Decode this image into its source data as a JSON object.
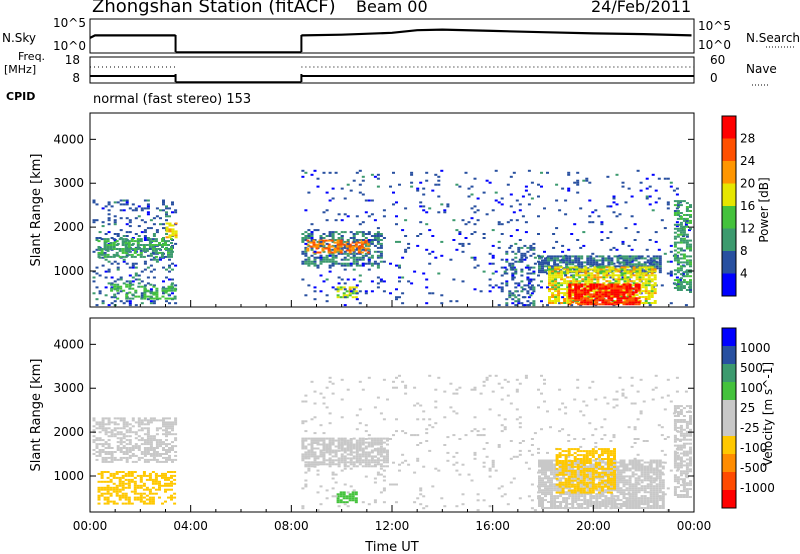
{
  "header": {
    "station_title": "Zhongshan Station (fitACF)",
    "beam": "Beam 00",
    "date": "24/Feb/2011",
    "mode": "normal (fast stereo) 153",
    "cpid_label": "CPID"
  },
  "strips": {
    "nsky_label": "N.Sky",
    "nsky_ticks": [
      "10^5",
      "10^0"
    ],
    "nsearch_label": "N.Search",
    "nsearch_ticks": [
      "10^5",
      "10^0"
    ],
    "freq_label": "Freq.",
    "freq_unit": "[MHz]",
    "freq_ticks": [
      "18",
      "8"
    ],
    "nave_label": "Nave",
    "nave_ticks": [
      "60",
      "0"
    ]
  },
  "colors": {
    "power_scale": [
      "#0000ff",
      "#2850a0",
      "#3c9a6e",
      "#44c23c",
      "#e6e600",
      "#ff9600",
      "#ff5000",
      "#ff0000"
    ],
    "velocity_scale": [
      "#ff0000",
      "#ff4a00",
      "#ff8c00",
      "#ffc800",
      "#c8c8c8",
      "#c8c8c8",
      "#44c23c",
      "#3c9a6e",
      "#2850a0",
      "#0000ff"
    ],
    "ground_scatter": "#c0c0c0"
  },
  "chart_data": [
    {
      "type": "heatmap",
      "name": "power",
      "ylabel": "Slant Range [km]",
      "y_ticks": [
        1000,
        2000,
        3000,
        4000
      ],
      "ylim": [
        180,
        4600
      ],
      "xlim": [
        0,
        24
      ],
      "x_ticks": [
        "00:00",
        "04:00",
        "08:00",
        "12:00",
        "16:00",
        "20:00",
        "00:00"
      ],
      "colorbar": {
        "label": "Power [dB]",
        "ticks": [
          "28",
          "24",
          "20",
          "16",
          "12",
          "8",
          "4"
        ],
        "range": [
          0,
          30
        ]
      },
      "regions": [
        {
          "t0": 0.1,
          "t1": 3.4,
          "r0": 200,
          "r1": 2600,
          "value": 6,
          "density": 0.22
        },
        {
          "t0": 0.3,
          "t1": 3.3,
          "r0": 1300,
          "r1": 1750,
          "value": 10,
          "density": 0.6
        },
        {
          "t0": 0.8,
          "t1": 3.4,
          "r0": 350,
          "r1": 700,
          "value": 12,
          "density": 0.5
        },
        {
          "t0": 3.0,
          "t1": 3.4,
          "r0": 1700,
          "r1": 2100,
          "value": 18,
          "density": 0.7
        },
        {
          "t0": 8.4,
          "t1": 11.6,
          "r0": 1100,
          "r1": 1900,
          "value": 8,
          "density": 0.55
        },
        {
          "t0": 8.6,
          "t1": 11.0,
          "r0": 1400,
          "r1": 1700,
          "value": 22,
          "density": 0.6
        },
        {
          "t0": 9.8,
          "t1": 10.6,
          "r0": 380,
          "r1": 650,
          "value": 16,
          "density": 0.75
        },
        {
          "t0": 8.4,
          "t1": 23.8,
          "r0": 200,
          "r1": 3300,
          "value": 5,
          "density": 0.06
        },
        {
          "t0": 16.5,
          "t1": 17.6,
          "r0": 200,
          "r1": 1600,
          "value": 6,
          "density": 0.35
        },
        {
          "t0": 17.8,
          "t1": 22.7,
          "r0": 950,
          "r1": 1350,
          "value": 7,
          "density": 0.8
        },
        {
          "t0": 18.2,
          "t1": 22.5,
          "r0": 250,
          "r1": 1100,
          "value": 17,
          "density": 0.75
        },
        {
          "t0": 19.0,
          "t1": 21.8,
          "r0": 220,
          "r1": 700,
          "value": 27,
          "density": 0.8
        },
        {
          "t0": 23.2,
          "t1": 23.9,
          "r0": 500,
          "r1": 2600,
          "value": 10,
          "density": 0.55
        }
      ]
    },
    {
      "type": "heatmap",
      "name": "velocity",
      "ylabel": "Slant Range [km]",
      "y_ticks": [
        1000,
        2000,
        3000,
        4000
      ],
      "ylim": [
        180,
        4600
      ],
      "xlim": [
        0,
        24
      ],
      "x_ticks": [
        "00:00",
        "04:00",
        "08:00",
        "12:00",
        "16:00",
        "20:00",
        "00:00"
      ],
      "xlabel": "Time UT",
      "colorbar": {
        "label": "Velocity [m s^-1]",
        "ticks": [
          "1000",
          "500",
          "100",
          "25",
          "-25",
          "-100",
          "-500",
          "-1000"
        ],
        "range": [
          -1200,
          1200
        ]
      },
      "regions": [
        {
          "t0": 0.1,
          "t1": 3.4,
          "r0": 1300,
          "r1": 2300,
          "value": 0,
          "density": 0.55
        },
        {
          "t0": 0.3,
          "t1": 3.4,
          "r0": 350,
          "r1": 1100,
          "value": -300,
          "density": 0.55
        },
        {
          "t0": 8.4,
          "t1": 11.8,
          "r0": 1200,
          "r1": 1850,
          "value": 0,
          "density": 0.75
        },
        {
          "t0": 9.8,
          "t1": 10.6,
          "r0": 380,
          "r1": 650,
          "value": 300,
          "density": 0.8
        },
        {
          "t0": 8.4,
          "t1": 23.8,
          "r0": 200,
          "r1": 3300,
          "value": -150,
          "density": 0.05
        },
        {
          "t0": 17.8,
          "t1": 22.8,
          "r0": 250,
          "r1": 1350,
          "value": 0,
          "density": 0.8
        },
        {
          "t0": 18.5,
          "t1": 20.8,
          "r0": 600,
          "r1": 1600,
          "value": -400,
          "density": 0.65
        },
        {
          "t0": 23.2,
          "t1": 23.9,
          "r0": 500,
          "r1": 2600,
          "value": 0,
          "density": 0.6
        }
      ]
    },
    {
      "type": "line",
      "name": "sky-noise",
      "series": [
        {
          "x": [
            0,
            0.2,
            3.4,
            8.4,
            10,
            12,
            13,
            14,
            16,
            18,
            20,
            22,
            23.9
          ],
          "y": [
            2.2,
            2.6,
            2.6,
            2.6,
            2.7,
            3.0,
            3.4,
            3.5,
            3.3,
            3.1,
            2.9,
            2.8,
            2.6
          ]
        }
      ],
      "xlim": [
        0,
        24
      ],
      "ylim": [
        0,
        5
      ]
    }
  ]
}
